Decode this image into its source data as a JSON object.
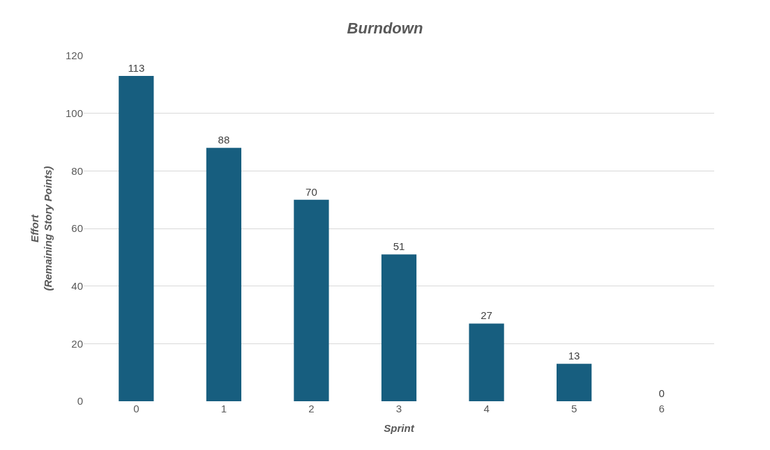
{
  "chart_data": {
    "type": "bar",
    "title": "Burndown",
    "xlabel": "Sprint",
    "ylabel": "Effort\n(Remaining Story Points)",
    "categories": [
      "0",
      "1",
      "2",
      "3",
      "4",
      "5",
      "6"
    ],
    "values": [
      113,
      88,
      70,
      51,
      27,
      13,
      0
    ],
    "color": "#175e7f",
    "ylim": [
      0,
      120
    ],
    "yticks": [
      0,
      20,
      40,
      60,
      80,
      100,
      120
    ],
    "grid": "y",
    "data_labels": true
  }
}
